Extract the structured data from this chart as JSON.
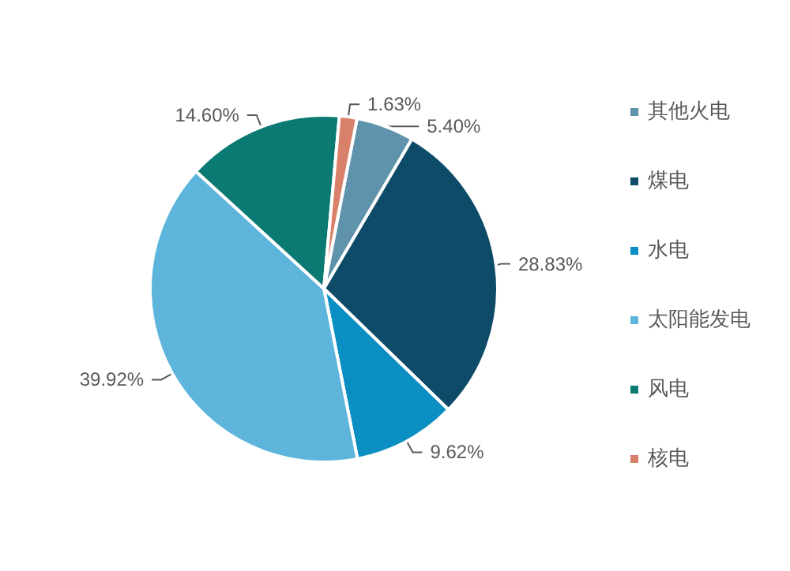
{
  "chart_data": {
    "type": "pie",
    "categories": [
      "其他火电",
      "煤电",
      "水电",
      "太阳能发电",
      "风电",
      "核电"
    ],
    "values": [
      5.4,
      28.83,
      9.62,
      39.92,
      14.6,
      1.63
    ],
    "colors": [
      "#5f93ab",
      "#0e4b68",
      "#0b8fc2",
      "#5db5dc",
      "#0a7a72",
      "#d9806b"
    ],
    "value_labels": [
      "5.40%",
      "28.83%",
      "9.62%",
      "39.92%",
      "14.60%",
      "1.63%"
    ],
    "legend": "right"
  }
}
